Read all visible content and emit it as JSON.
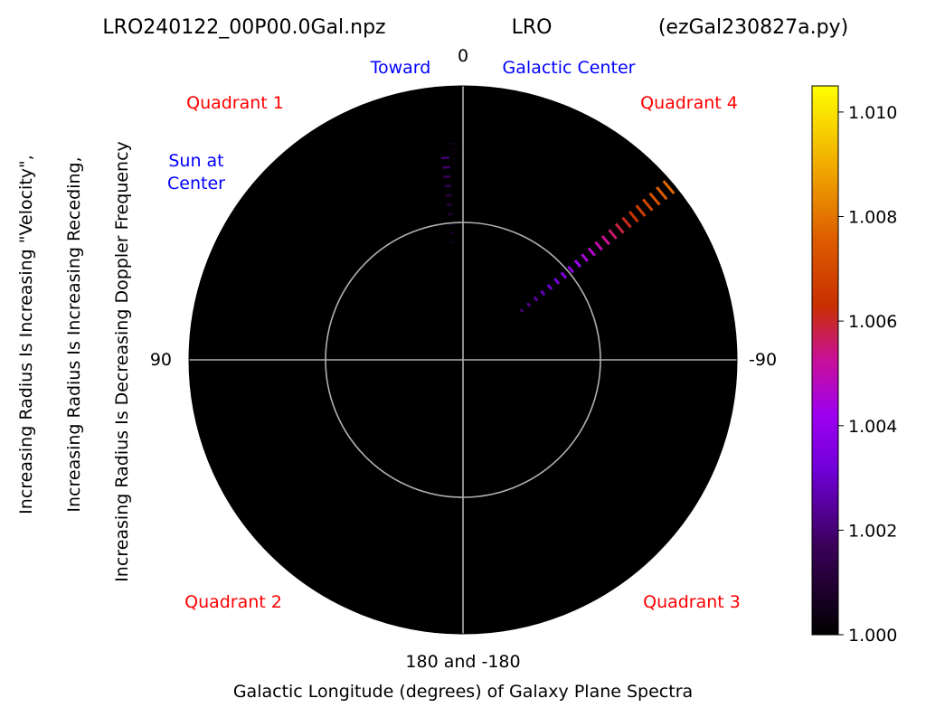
{
  "header": {
    "filename": "LRO240122_00P00.0Gal.npz",
    "station": "LRO",
    "program": "(ezGal230827a.py)"
  },
  "labels": {
    "toward": "Toward",
    "galactic_center": "Galactic Center",
    "sun_line1": "Sun at",
    "sun_line2": "Center"
  },
  "quadrants": {
    "q1": "Quadrant 1",
    "q2": "Quadrant 2",
    "q3": "Quadrant 3",
    "q4": "Quadrant 4"
  },
  "colors": {
    "quadrant_label": "#ff0000",
    "annotation": "#0000ff",
    "plot_background": "#000000",
    "grid": "#b0b0b0"
  },
  "chart_data": {
    "type": "polar-heatmap",
    "title": "LRO240122_00P00.0Gal.npz    LRO    (ezGal230827a.py)",
    "xlabel": "Galactic Longitude (degrees) of Galaxy Plane Spectra",
    "ylabel_lines": [
      "Increasing Radius Is Increasing \"Velocity\",",
      "Increasing Radius Is Increasing Receding,",
      "Increasing Radius Is Decreasing Doppler Frequency"
    ],
    "angle_ticks": [
      {
        "angle": 0,
        "label": "0"
      },
      {
        "angle": 90,
        "label": "90"
      },
      {
        "angle": -90,
        "label": "-90"
      },
      {
        "angle": 180,
        "label": "180 and -180"
      }
    ],
    "colormap": "gnuplot",
    "colorbar": {
      "min": 1.0,
      "max": 1.0105,
      "ticks": [
        1.0,
        1.002,
        1.004,
        1.006,
        1.008,
        1.01
      ],
      "tick_labels": [
        "1.000",
        "1.002",
        "1.004",
        "1.006",
        "1.008",
        "1.010"
      ]
    },
    "radial_circle_fraction": 0.5,
    "strips": [
      {
        "longitude": 5,
        "r_start": 0.43,
        "r_end": 0.74,
        "n": 10,
        "max_value": 1.002
      },
      {
        "longitude": 2.5,
        "r_start": 0.7,
        "r_end": 0.79,
        "n": 6,
        "max_value": 1.0004
      },
      {
        "longitude": -50,
        "r_start": 0.28,
        "r_end": 0.98,
        "n": 22,
        "max_value": 1.0078
      }
    ]
  }
}
